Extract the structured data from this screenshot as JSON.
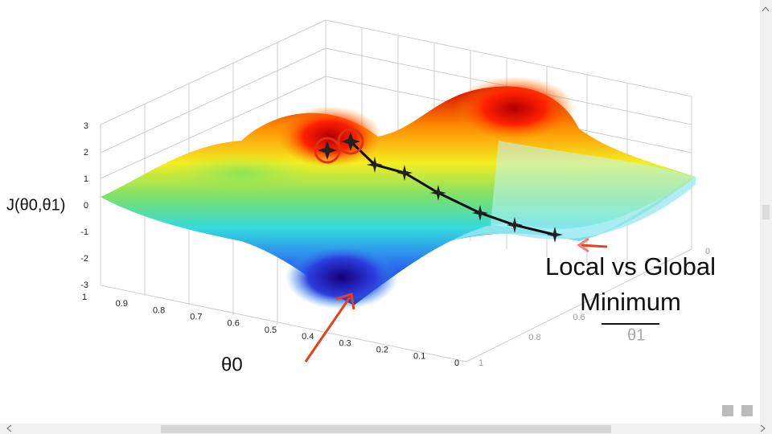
{
  "plot": {
    "z_axis_label": "J(θ0,θ1)",
    "theta0_label": "θ0",
    "theta1_label": "θ1",
    "z_ticks": [
      "3",
      "2",
      "1",
      "0",
      "-1",
      "-2",
      "-3"
    ],
    "theta0_ticks": [
      "1",
      "0.9",
      "0.8",
      "0.7",
      "0.6",
      "0.5",
      "0.4",
      "0.3",
      "0.2",
      "0.1",
      "0"
    ],
    "theta1_ticks": [
      "1",
      "0.8",
      "0.6",
      "0"
    ]
  },
  "caption": {
    "line1": "Local vs Global",
    "line2": "Minimum"
  }
}
